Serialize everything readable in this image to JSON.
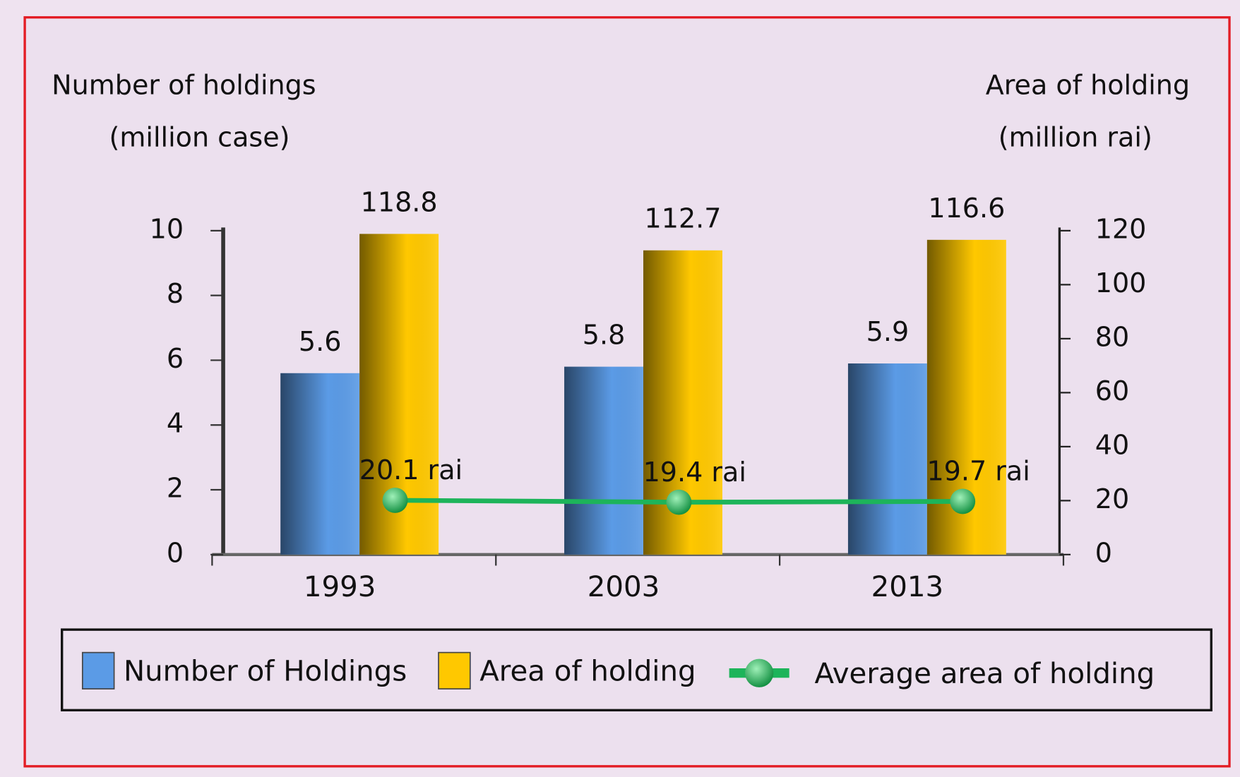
{
  "chart_data": {
    "type": "bar",
    "y_label": [
      "Number of holdings",
      "(million case)"
    ],
    "y2_label": [
      "Area of holding",
      "(million rai)"
    ],
    "categories": [
      "1993",
      "2003",
      "2013"
    ],
    "series": [
      {
        "name": "Number of Holdings",
        "color": "#5b9be6",
        "values": [
          5.6,
          5.8,
          5.9
        ]
      },
      {
        "name": "Area of holding",
        "color": "#ffc800",
        "axis": "y2",
        "values": [
          118.8,
          112.7,
          116.6
        ]
      },
      {
        "name": "Average area of holding",
        "type": "line",
        "color": "#1db45a",
        "axis": "y2",
        "values": [
          20.1,
          19.4,
          19.7
        ],
        "value_labels": [
          "20.1 rai",
          "19.4 rai",
          "19.7 rai"
        ]
      }
    ],
    "ylim": [
      0,
      10
    ],
    "yticks": [
      0,
      2,
      4,
      6,
      8,
      10
    ],
    "y2lim": [
      0,
      120
    ],
    "y2ticks": [
      0,
      20,
      40,
      60,
      80,
      100,
      120
    ],
    "legend": "bottom"
  }
}
